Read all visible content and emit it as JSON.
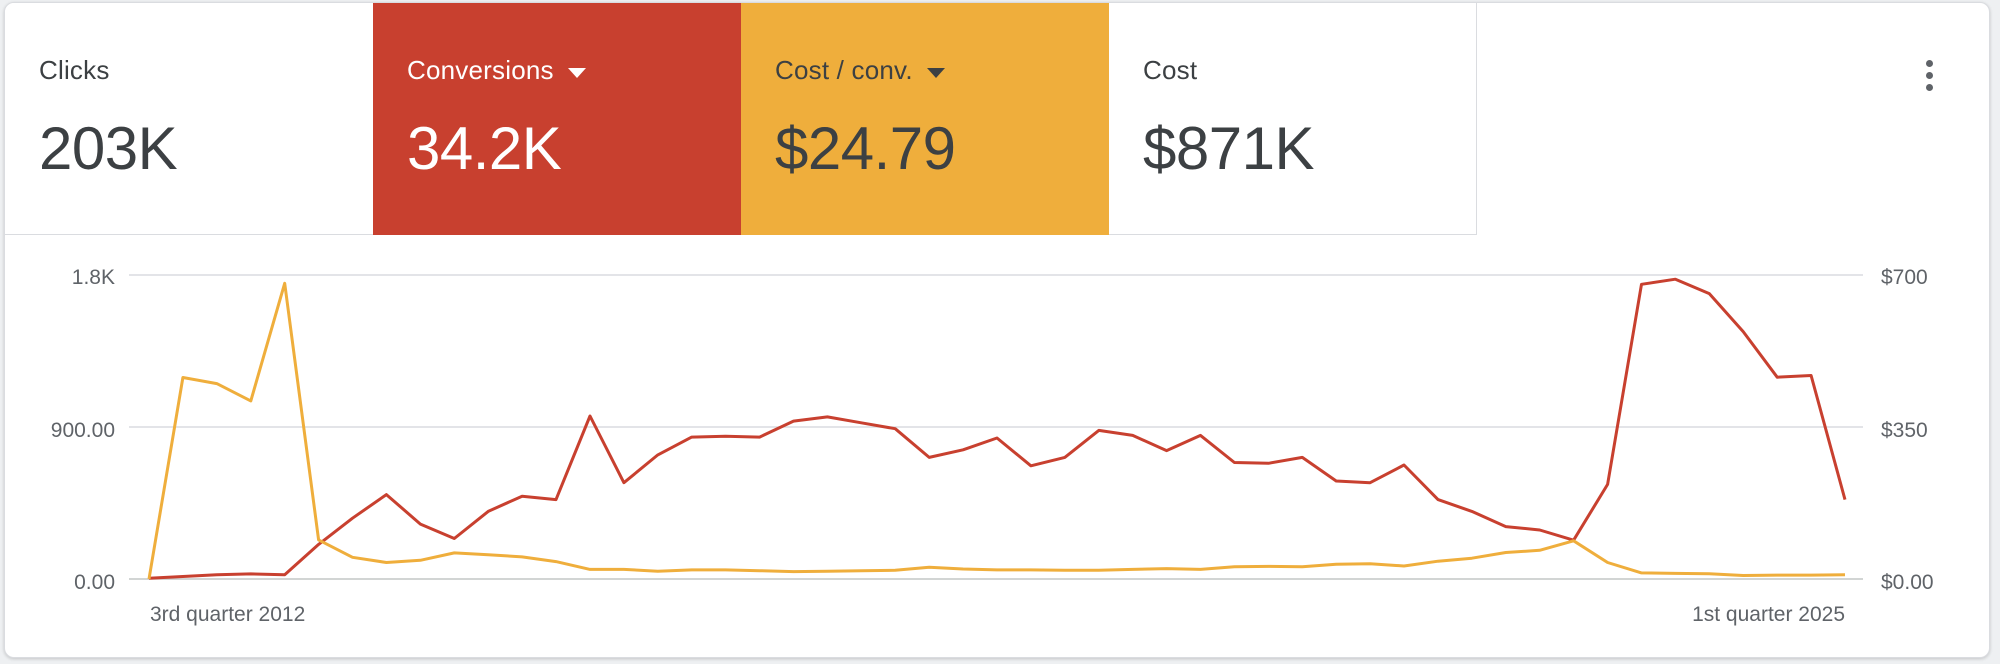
{
  "metrics": [
    {
      "label": "Clicks",
      "value": "203K",
      "dropdown": false
    },
    {
      "label": "Conversions",
      "value": "34.2K",
      "dropdown": true,
      "color": "#c8402f"
    },
    {
      "label": "Cost / conv.",
      "value": "$24.79",
      "dropdown": true,
      "color": "#efae3c"
    },
    {
      "label": "Cost",
      "value": "$871K",
      "dropdown": false
    }
  ],
  "menu": {
    "icon": "more-vert-icon"
  },
  "chart_data": {
    "type": "line",
    "left_axis": {
      "ticks": [
        "1.8K",
        "900.00",
        "0.00"
      ],
      "ylim": [
        0,
        1800
      ]
    },
    "right_axis": {
      "ticks": [
        "$700",
        "$350",
        "$0.00"
      ],
      "ylim": [
        0,
        700
      ]
    },
    "x_labels": {
      "start": "3rd quarter 2012",
      "end": "1st quarter 2025"
    },
    "grid": true,
    "series": [
      {
        "metric": "Conversions",
        "axis": "left",
        "color": "#c8402f",
        "values": [
          5,
          15,
          25,
          30,
          25,
          205,
          360,
          500,
          325,
          240,
          400,
          490,
          470,
          965,
          570,
          735,
          840,
          845,
          840,
          935,
          960,
          925,
          890,
          720,
          765,
          835,
          670,
          720,
          880,
          850,
          760,
          850,
          690,
          685,
          720,
          580,
          570,
          675,
          470,
          400,
          310,
          290,
          230,
          560,
          1745,
          1775,
          1690,
          1465,
          1195,
          1205,
          470
        ]
      },
      {
        "metric": "Cost / conv.",
        "axis": "right",
        "color": "#efae3c",
        "values": [
          0,
          464,
          450,
          410,
          681,
          90,
          50,
          38,
          43,
          60,
          56,
          51,
          40,
          22,
          22,
          18,
          21,
          21,
          19,
          17,
          18,
          19,
          20,
          27,
          23,
          21,
          21,
          20,
          20,
          22,
          24,
          22,
          28,
          29,
          28,
          34,
          35,
          30,
          41,
          48,
          61,
          66,
          88,
          38,
          14,
          13,
          12,
          8,
          9,
          9,
          10
        ]
      }
    ]
  }
}
